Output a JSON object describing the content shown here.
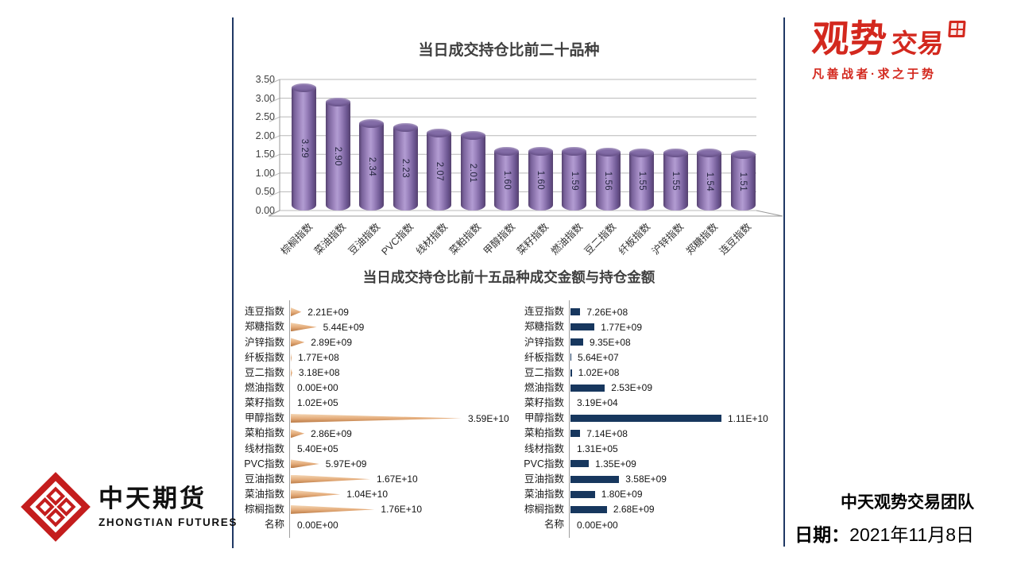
{
  "page": {
    "background": "#ffffff",
    "panel_border_color": "#1F3864"
  },
  "bottom_title": "当日成交持仓比前十五品种成交金额与持仓金额",
  "chart_data": [
    {
      "type": "bar",
      "style": "3d-cylinder",
      "title": "当日成交持仓比前二十品种",
      "categories": [
        "棕榈指数",
        "菜油指数",
        "豆油指数",
        "PVC指数",
        "线材指数",
        "菜粕指数",
        "甲醇指数",
        "菜籽指数",
        "燃油指数",
        "豆二指数",
        "纤板指数",
        "沪锌指数",
        "郑糖指数",
        "连豆指数"
      ],
      "values": [
        3.29,
        2.9,
        2.34,
        2.23,
        2.07,
        2.01,
        1.6,
        1.6,
        1.59,
        1.56,
        1.55,
        1.55,
        1.54,
        1.51
      ],
      "value_labels": [
        "3.29",
        "2.90",
        "2.34",
        "2.23",
        "2.07",
        "2.01",
        "1.60",
        "1.60",
        "1.59",
        "1.56",
        "1.55",
        "1.55",
        "1.54",
        "1.51"
      ],
      "y_ticks": [
        "3.50",
        "3.00",
        "2.50",
        "2.00",
        "1.50",
        "1.00",
        "0.50",
        "0.00"
      ],
      "ylim": [
        0,
        3.5
      ],
      "grid": true,
      "legend": "none",
      "bar_color": "#8064A2"
    },
    {
      "type": "bar-horizontal",
      "style": "cone",
      "title": "当日成交持仓比前十五品种成交金额与持仓金额",
      "categories": [
        "连豆指数",
        "郑糖指数",
        "沪锌指数",
        "纤板指数",
        "豆二指数",
        "燃油指数",
        "菜籽指数",
        "甲醇指数",
        "菜粕指数",
        "线材指数",
        "PVC指数",
        "豆油指数",
        "菜油指数",
        "棕榈指数",
        "名称"
      ],
      "values": [
        2210000000.0,
        5440000000.0,
        2890000000.0,
        177000000.0,
        318000000.0,
        0,
        102000.0,
        35900000000.0,
        2860000000.0,
        540000.0,
        5970000000.0,
        16700000000.0,
        10400000000.0,
        17600000000.0,
        0
      ],
      "value_labels": [
        "2.21E+09",
        "5.44E+09",
        "2.89E+09",
        "1.77E+08",
        "3.18E+08",
        "0.00E+00",
        "1.02E+05",
        "3.59E+10",
        "2.86E+09",
        "5.40E+05",
        "5.97E+09",
        "1.67E+10",
        "1.04E+10",
        "1.76E+10",
        "0.00E+00"
      ],
      "legend": "none",
      "bar_color": "#E3AA78"
    },
    {
      "type": "bar-horizontal",
      "style": "flat",
      "title": "当日成交持仓比前十五品种成交金额与持仓金额",
      "categories": [
        "连豆指数",
        "郑糖指数",
        "沪锌指数",
        "纤板指数",
        "豆二指数",
        "燃油指数",
        "菜籽指数",
        "甲醇指数",
        "菜粕指数",
        "线材指数",
        "PVC指数",
        "豆油指数",
        "菜油指数",
        "棕榈指数",
        "名称"
      ],
      "values": [
        726000000.0,
        1770000000.0,
        935000000.0,
        56400000.0,
        102000000.0,
        2530000000.0,
        31900.0,
        11100000000.0,
        714000000.0,
        131000.0,
        1350000000.0,
        3580000000.0,
        1800000000.0,
        2680000000.0,
        0
      ],
      "value_labels": [
        "7.26E+08",
        "1.77E+09",
        "9.35E+08",
        "5.64E+07",
        "1.02E+08",
        "2.53E+09",
        "3.19E+04",
        "1.11E+10",
        "7.14E+08",
        "1.31E+05",
        "1.35E+09",
        "3.58E+09",
        "1.80E+09",
        "2.68E+09",
        "0.00E+00"
      ],
      "legend": "none",
      "bar_color": "#17375E"
    }
  ],
  "branding": {
    "guanshi": {
      "wordmark_main": "观势",
      "wordmark_sub": "交易",
      "tagline": "凡善战者·求之于势",
      "color": "#D3281E"
    },
    "zhongtian": {
      "name_cn": "中天期货",
      "name_en": "ZHONGTIAN FUTURES",
      "logo_color": "#C41D1D"
    }
  },
  "footer": {
    "team": "中天观势交易团队",
    "date_label": "日期：",
    "date_value": "2021年11月8日"
  }
}
